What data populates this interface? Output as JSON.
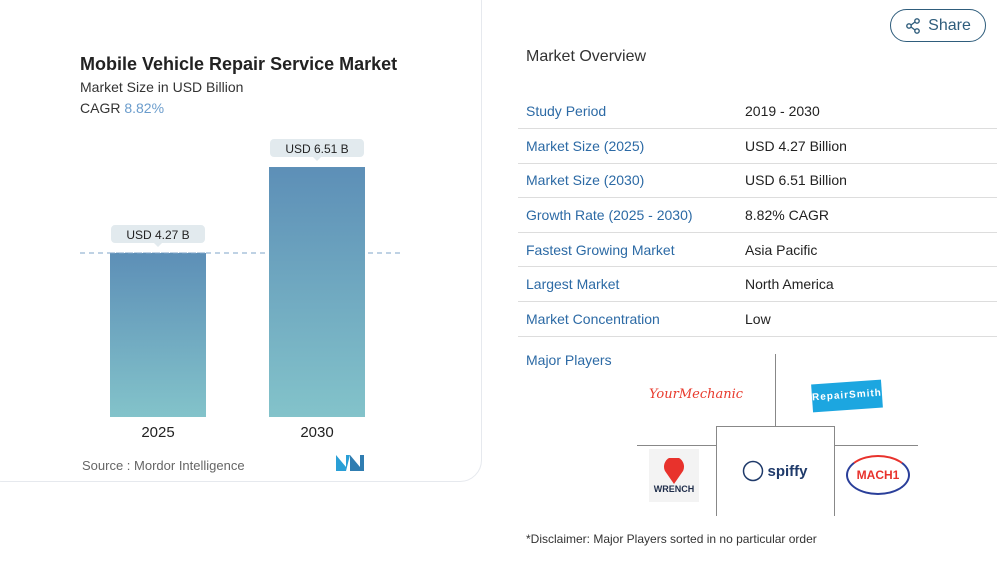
{
  "chart_data": {
    "type": "bar",
    "title": "Mobile Vehicle Repair Service Market",
    "subtitle": "Market Size in USD Billion",
    "cagr_label": "CAGR",
    "cagr_value": "8.82%",
    "categories": [
      "2025",
      "2030"
    ],
    "values": [
      4.27,
      6.51
    ],
    "data_labels": [
      "USD 4.27 B",
      "USD 6.51 B"
    ],
    "reference_line": 4.27,
    "colors": {
      "bar_top": "#5d8fb7",
      "bar_bottom": "#83c3ca",
      "accent": "#6a9ccc"
    },
    "source": "Source :  Mordor Intelligence"
  },
  "share_label": "Share",
  "overview": {
    "title": "Market Overview",
    "rows": [
      {
        "k": "Study Period",
        "v": "2019 - 2030"
      },
      {
        "k": "Market Size (2025)",
        "v": "USD 4.27 Billion"
      },
      {
        "k": "Market Size (2030)",
        "v": "USD 6.51 Billion"
      },
      {
        "k": "Growth Rate (2025 - 2030)",
        "v": "8.82% CAGR"
      },
      {
        "k": "Fastest Growing Market",
        "v": "Asia Pacific"
      },
      {
        "k": "Largest Market",
        "v": "North America"
      },
      {
        "k": "Market Concentration",
        "v": "Low"
      }
    ],
    "major_players_label": "Major Players",
    "players": [
      "YourMechanic",
      "RepairSmith",
      "Wrench",
      "Spiffy",
      "Mach1"
    ],
    "disclaimer": "*Disclaimer: Major Players sorted in no particular order"
  }
}
